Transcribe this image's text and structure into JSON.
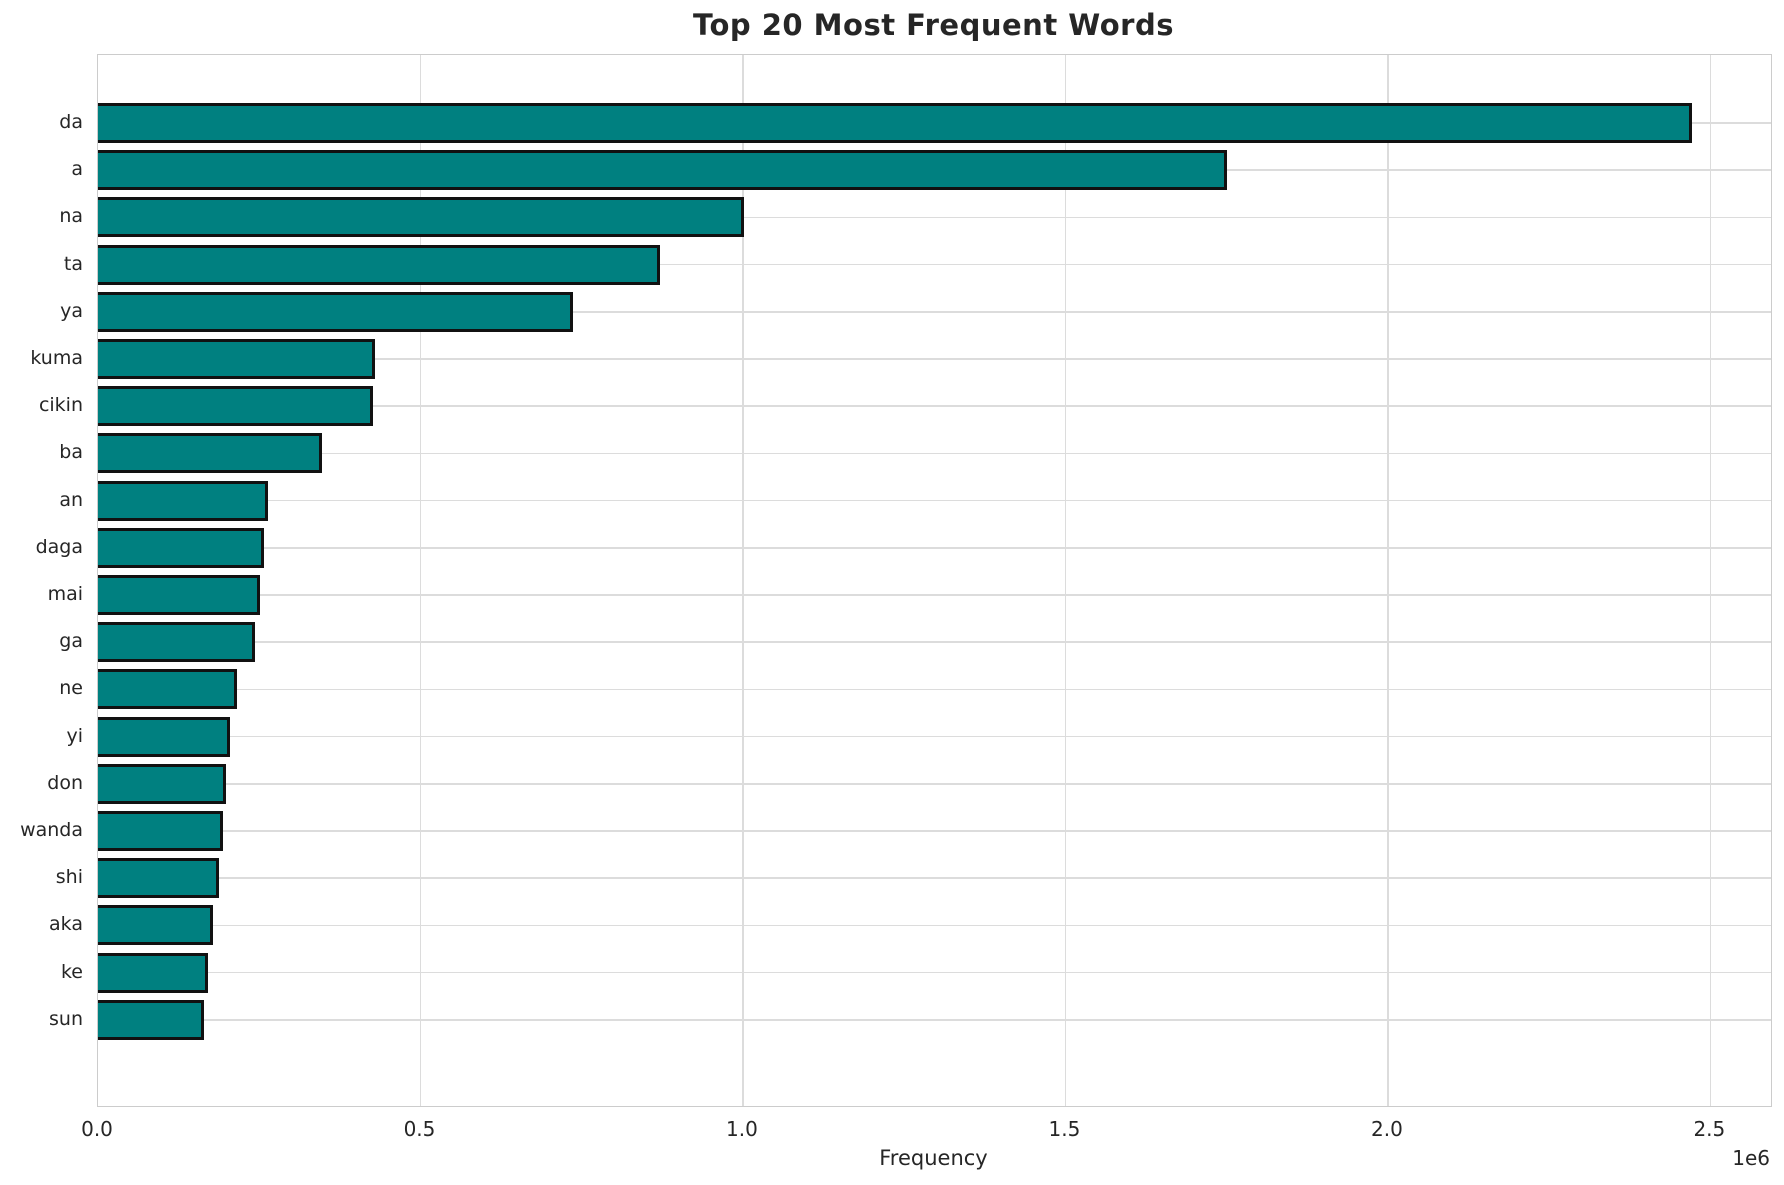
{
  "chart": {
    "offset_label": "1e6",
    "colors": {
      "bar_fill": "#008080",
      "bar_edge": "#111111",
      "grid": "#dcdcdc",
      "spine": "#cccccc",
      "text": "#262626"
    }
  },
  "chart_data": {
    "type": "bar",
    "orientation": "horizontal",
    "title": "Top 20 Most Frequent Words",
    "xlabel": "Frequency",
    "ylabel": "",
    "categories": [
      "da",
      "a",
      "na",
      "ta",
      "ya",
      "kuma",
      "cikin",
      "ba",
      "an",
      "daga",
      "mai",
      "ga",
      "ne",
      "yi",
      "don",
      "wanda",
      "shi",
      "aka",
      "ke",
      "sun"
    ],
    "values": [
      2471000,
      1751000,
      1002000,
      871000,
      736000,
      430000,
      427000,
      347000,
      264000,
      257000,
      251000,
      243000,
      215000,
      204000,
      199000,
      193000,
      187000,
      179000,
      170000,
      164000
    ],
    "xlim": [
      0,
      2594000
    ],
    "xticks": [
      0,
      500000,
      1000000,
      1500000,
      2000000,
      2500000
    ],
    "xtick_labels": [
      "0.0",
      "0.5",
      "1.0",
      "1.5",
      "2.0",
      "2.5"
    ],
    "axis_multiplier": 1000000,
    "grid": true,
    "legend": false,
    "bars_sorted_descending": true
  }
}
